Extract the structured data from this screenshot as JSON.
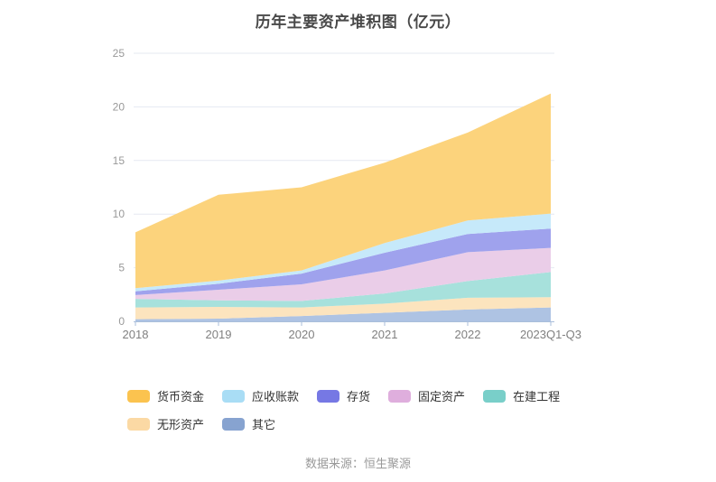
{
  "title": "历年主要资产堆积图（亿元）",
  "source": "数据来源：恒生聚源",
  "colors": {
    "grid_line": "#E5E9F2",
    "axis_line": "#A9BEDB",
    "y_label": "#999999",
    "x_label": "#808080",
    "title_text": "#494949",
    "legend_text": "#333333",
    "source_text": "#999999"
  },
  "chart_data": {
    "type": "area",
    "stacked": true,
    "title": "历年主要资产堆积图（亿元）",
    "categories": [
      "2018",
      "2019",
      "2020",
      "2021",
      "2022",
      "2023Q1-Q3"
    ],
    "yticks": [
      0,
      5,
      10,
      15,
      20,
      25
    ],
    "ylim": [
      0,
      25
    ],
    "grid": true,
    "legend_position": "bottom",
    "stack_note": "series listed in legend order; stacked bottom-to-top in reverse of this order (其它 at bottom, 货币资金 on top)",
    "series": [
      {
        "key": "monetary-funds",
        "name": "货币资金",
        "color": "#FBC34F",
        "area_color": "#FCD37C",
        "values": [
          5.2,
          8.0,
          7.75,
          7.5,
          8.2,
          11.2
        ]
      },
      {
        "key": "accounts-receivable",
        "name": "应收账款",
        "color": "#A9DDF5",
        "area_color": "#C6E9FA",
        "values": [
          0.3,
          0.3,
          0.3,
          0.9,
          1.25,
          1.4
        ]
      },
      {
        "key": "inventory",
        "name": "存货",
        "color": "#7678E4",
        "area_color": "#9FA2ED",
        "values": [
          0.35,
          0.55,
          1.0,
          1.65,
          1.7,
          1.8
        ]
      },
      {
        "key": "fixed-assets",
        "name": "固定资产",
        "color": "#DFAEDD",
        "area_color": "#EACDE8",
        "values": [
          0.35,
          1.0,
          1.55,
          2.15,
          2.7,
          2.25
        ]
      },
      {
        "key": "construction-in-progress",
        "name": "在建工程",
        "color": "#79CFC9",
        "area_color": "#A7E1DC",
        "values": [
          0.8,
          0.6,
          0.6,
          0.95,
          1.55,
          2.35
        ]
      },
      {
        "key": "intangible-assets",
        "name": "无形资产",
        "color": "#FBD9A4",
        "area_color": "#FCE4BE",
        "values": [
          1.1,
          1.1,
          0.8,
          0.85,
          1.1,
          0.95
        ]
      },
      {
        "key": "other",
        "name": "其它",
        "color": "#87A3D0",
        "area_color": "#AEC3E3",
        "values": [
          0.2,
          0.25,
          0.5,
          0.8,
          1.1,
          1.3
        ]
      }
    ],
    "totals": [
      8.3,
      11.8,
      12.5,
      14.8,
      17.6,
      21.25
    ]
  }
}
